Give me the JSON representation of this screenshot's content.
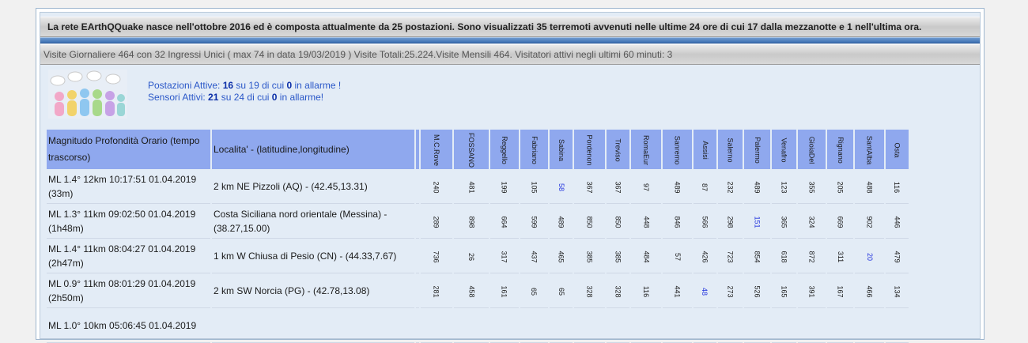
{
  "header": {
    "intro": "La rete EArthQQuake nasce nell'ottobre 2016 ed è composta attualmente da 25 postazioni. Sono visualizzati 35 terremoti avvenuti nelle ultime 24 ore di cui 17 dalla mezzanotte e 1 nell'ultima ora.",
    "visits": "Visite Giornaliere 464 con 32 Ingressi Unici ( max 74 in data 19/03/2019 ) Visite Totali:25.224.Visite Mensili 464. Visitatori attivi negli ultimi 60 minuti: 3"
  },
  "stats": {
    "line1_a": "Postazioni Attive: ",
    "line1_b": "16",
    "line1_c": " su 19 di cui ",
    "line1_d": "0",
    "line1_e": " in allarme !",
    "line2_a": "Sensori Attivi: ",
    "line2_b": "21",
    "line2_c": " su 24 di cui ",
    "line2_d": "0",
    "line2_e": " in allarme!"
  },
  "table": {
    "col_mag": "Magnitudo Profondità Orario (tempo trascorso)",
    "col_loc": "Localita' - (latitudine,longitudine)",
    "stations": [
      "M.C.Rove",
      "FOSSANO",
      "Reggello",
      "Fabriano",
      "Sabina",
      "Pordenon",
      "Treviso",
      "RomaEur",
      "Sanremo",
      "Assisi",
      "Salerno",
      "Palermo",
      "Venafro",
      "GioiaDel",
      "Rignano",
      "SantAlba",
      "Osta"
    ],
    "rows": [
      {
        "mag": "ML 1.4° 12km 10:17:51 01.04.2019 (33m)",
        "loc": "2 km NE Pizzoli (AQ) - (42.45,13.31)",
        "values": [
          "240",
          "481",
          "199",
          "105",
          "58",
          "367",
          "367",
          "97",
          "489",
          "87",
          "232",
          "489",
          "123",
          "355",
          "205",
          "488",
          "116"
        ],
        "highlight": [
          4
        ]
      },
      {
        "mag": "ML 1.3° 11km 09:02:50 01.04.2019 (1h48m)",
        "loc": "Costa Siciliana nord orientale (Messina) - (38.27,15.00)",
        "values": [
          "289",
          "898",
          "664",
          "599",
          "489",
          "850",
          "850",
          "448",
          "846",
          "566",
          "298",
          "151",
          "365",
          "324",
          "669",
          "902",
          "446"
        ],
        "highlight": [
          11
        ]
      },
      {
        "mag": "ML 1.4° 11km 08:04:27 01.04.2019 (2h47m)",
        "loc": "1 km W Chiusa di Pesio (CN) - (44.33,7.67)",
        "values": [
          "736",
          "26",
          "317",
          "437",
          "465",
          "385",
          "385",
          "484",
          "57",
          "426",
          "723",
          "854",
          "618",
          "872",
          "311",
          "20",
          "479"
        ],
        "highlight": [
          15
        ]
      },
      {
        "mag": "ML 0.9° 11km 08:01:29 01.04.2019 (2h50m)",
        "loc": "2 km SW Norcia (PG) - (42.78,13.08)",
        "values": [
          "281",
          "458",
          "161",
          "65",
          "65",
          "328",
          "328",
          "116",
          "441",
          "48",
          "273",
          "526",
          "165",
          "391",
          "167",
          "466",
          "134"
        ],
        "highlight": [
          9
        ]
      },
      {
        "mag": "ML 1.0° 10km 05:06:45 01.04.2019",
        "loc": "",
        "values": [
          "",
          "",
          "",
          "",
          "",
          "",
          "",
          "",
          "",
          "",
          "",
          "",
          "",
          "",
          "",
          "",
          ""
        ],
        "highlight": []
      }
    ]
  }
}
